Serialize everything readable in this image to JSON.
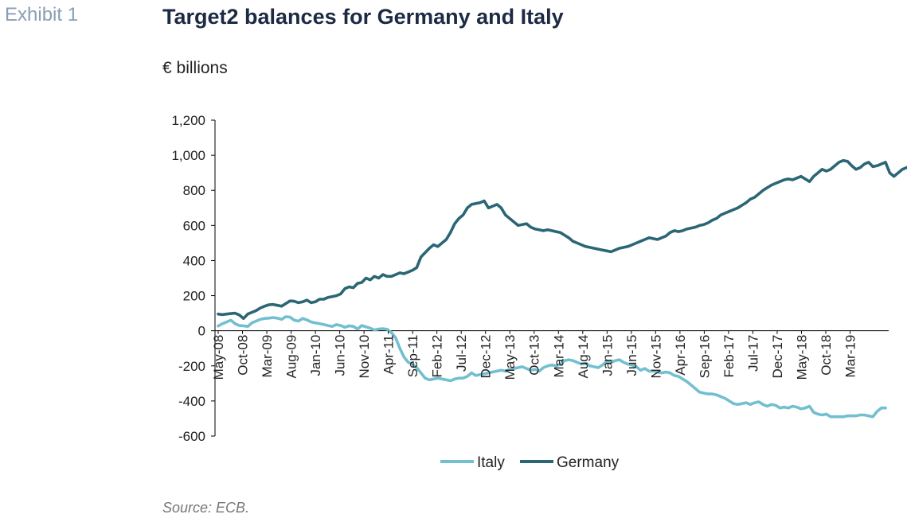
{
  "header": {
    "exhibit": "Exhibit 1",
    "title": "Target2 balances for Germany and Italy",
    "unit": "€ billions"
  },
  "footer": {
    "source": "Source: ECB."
  },
  "colors": {
    "italy": "#72bfd0",
    "germany": "#2b6675",
    "axis": "#000000"
  },
  "chart_data": {
    "type": "line",
    "title": "Target2 balances for Germany and Italy",
    "ylabel": "€ billions",
    "xlabel": "",
    "ylim": [
      -600,
      1200
    ],
    "yticks": [
      -600,
      -400,
      -200,
      0,
      200,
      400,
      600,
      800,
      1000,
      1200
    ],
    "ytick_labels": [
      "-600",
      "-400",
      "-200",
      "0",
      "200",
      "400",
      "600",
      "800",
      "1,000",
      "1,200"
    ],
    "xticks": [
      "May-08",
      "Oct-08",
      "Mar-09",
      "Aug-09",
      "Jan-10",
      "Jun-10",
      "Nov-10",
      "Apr-11",
      "Sep-11",
      "Feb-12",
      "Jul-12",
      "Dec-12",
      "May-13",
      "Oct-13",
      "Mar-14",
      "Aug-14",
      "Jan-15",
      "Jun-15",
      "Nov-15",
      "Apr-16",
      "Sep-16",
      "Feb-17",
      "Jul-17",
      "Dec-17",
      "May-18",
      "Oct-18",
      "Mar-19"
    ],
    "x_start": "May-08",
    "x_end": "Sep-19",
    "frequency": "monthly",
    "grid": false,
    "legend_position": "bottom",
    "series": [
      {
        "name": "Italy",
        "color": "#72bfd0",
        "values": [
          27,
          40,
          50,
          60,
          40,
          30,
          28,
          25,
          45,
          55,
          65,
          70,
          72,
          75,
          72,
          65,
          80,
          78,
          60,
          55,
          70,
          62,
          50,
          45,
          40,
          35,
          30,
          25,
          35,
          30,
          20,
          28,
          25,
          10,
          30,
          22,
          15,
          5,
          10,
          12,
          8,
          -10,
          -40,
          -100,
          -150,
          -180,
          -190,
          -210,
          -240,
          -270,
          -280,
          -275,
          -270,
          -275,
          -280,
          -285,
          -275,
          -270,
          -270,
          -260,
          -240,
          -255,
          -250,
          -245,
          -240,
          -235,
          -230,
          -225,
          -230,
          -220,
          -215,
          -210,
          -205,
          -215,
          -225,
          -220,
          -230,
          -210,
          -200,
          -195,
          -200,
          -190,
          -170,
          -165,
          -170,
          -180,
          -190,
          -185,
          -200,
          -205,
          -210,
          -195,
          -175,
          -180,
          -170,
          -165,
          -180,
          -190,
          -195,
          -205,
          -225,
          -215,
          -230,
          -230,
          -235,
          -240,
          -235,
          -240,
          -255,
          -260,
          -275,
          -290,
          -310,
          -330,
          -350,
          -355,
          -360,
          -360,
          -365,
          -375,
          -385,
          -400,
          -415,
          -420,
          -415,
          -410,
          -420,
          -410,
          -405,
          -420,
          -430,
          -420,
          -425,
          -440,
          -435,
          -440,
          -430,
          -435,
          -445,
          -440,
          -430,
          -465,
          -475,
          -480,
          -475,
          -490,
          -490,
          -490,
          -490,
          -485,
          -485,
          -485,
          -480,
          -480,
          -485,
          -490,
          -460,
          -440,
          -440
        ]
      },
      {
        "name": "Germany",
        "color": "#2b6675",
        "values": [
          95,
          92,
          95,
          98,
          100,
          90,
          70,
          95,
          105,
          115,
          130,
          140,
          148,
          150,
          145,
          140,
          155,
          170,
          168,
          160,
          165,
          175,
          160,
          165,
          180,
          180,
          190,
          195,
          200,
          210,
          240,
          250,
          245,
          270,
          275,
          300,
          290,
          310,
          300,
          320,
          310,
          310,
          320,
          330,
          325,
          335,
          345,
          360,
          420,
          445,
          470,
          490,
          480,
          500,
          520,
          560,
          610,
          640,
          660,
          700,
          720,
          725,
          730,
          740,
          700,
          710,
          720,
          700,
          660,
          640,
          620,
          600,
          605,
          610,
          590,
          580,
          575,
          570,
          575,
          570,
          565,
          560,
          545,
          530,
          510,
          500,
          490,
          480,
          475,
          470,
          465,
          460,
          455,
          450,
          460,
          470,
          475,
          480,
          490,
          500,
          510,
          520,
          530,
          525,
          520,
          530,
          540,
          560,
          570,
          565,
          570,
          580,
          585,
          590,
          600,
          605,
          615,
          630,
          640,
          660,
          670,
          680,
          690,
          700,
          715,
          730,
          750,
          760,
          780,
          800,
          815,
          830,
          840,
          850,
          860,
          865,
          860,
          870,
          880,
          865,
          850,
          880,
          900,
          920,
          910,
          920,
          940,
          960,
          970,
          965,
          940,
          920,
          930,
          950,
          960,
          935,
          940,
          950,
          960,
          900,
          880,
          900,
          920,
          930,
          940,
          945,
          870
        ]
      }
    ]
  }
}
